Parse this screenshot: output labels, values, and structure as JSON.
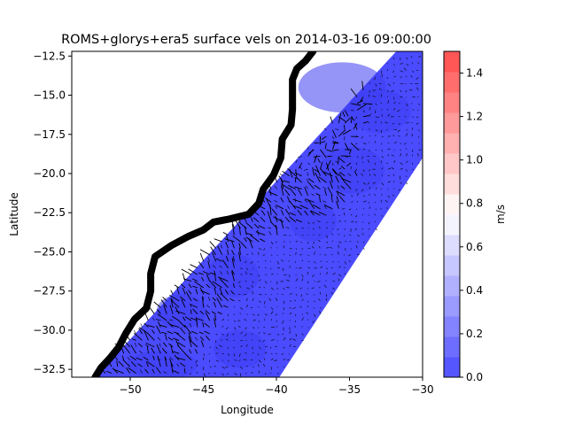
{
  "chart_data": {
    "type": "heatmap",
    "title": "ROMS+glorys+era5 surface vels on 2014-03-16 09:00:00",
    "xlabel": "Longitude",
    "ylabel": "Latitude",
    "xlim": [
      -54,
      -30
    ],
    "ylim": [
      -33,
      -12.2
    ],
    "xticks": [
      -50,
      -45,
      -40,
      -35,
      -30
    ],
    "yticks": [
      -32.5,
      -30.0,
      -27.5,
      -25.0,
      -22.5,
      -20.0,
      -17.5,
      -15.0,
      -12.5
    ],
    "xtick_labels": [
      "−50",
      "−45",
      "−40",
      "−35",
      "−30"
    ],
    "ytick_labels": [
      "−32.5",
      "−30.0",
      "−27.5",
      "−25.0",
      "−22.5",
      "−20.0",
      "−17.5",
      "−15.0",
      "−12.5"
    ],
    "colorbar": {
      "label": "m/s",
      "range": [
        0.0,
        1.5
      ],
      "ticks": [
        0.0,
        0.2,
        0.4,
        0.6,
        0.8,
        1.0,
        1.2,
        1.4
      ],
      "tick_labels": [
        "0.0",
        "0.2",
        "0.4",
        "0.6",
        "0.8",
        "1.0",
        "1.2",
        "1.4"
      ],
      "levels": 16,
      "colormap": "bwr",
      "low_color": "#4b4bff",
      "mid_color": "#ffffff",
      "high_color": "#ff4b4b"
    },
    "grid": false,
    "domain_fill_color": "#4b4bff",
    "coast_color": "#000000",
    "domain_outline": [
      [
        -31.8,
        -12.2
      ],
      [
        -30,
        -12.2
      ],
      [
        -30,
        -19.0
      ],
      [
        -39.8,
        -33.0
      ],
      [
        -52.4,
        -33.0
      ]
    ],
    "coastline": [
      [
        -52.4,
        -33.0
      ],
      [
        -52.0,
        -32.4
      ],
      [
        -51.4,
        -31.8
      ],
      [
        -50.8,
        -31.1
      ],
      [
        -50.3,
        -30.2
      ],
      [
        -49.7,
        -29.3
      ],
      [
        -48.9,
        -28.6
      ],
      [
        -48.6,
        -27.5
      ],
      [
        -48.6,
        -26.4
      ],
      [
        -48.3,
        -25.3
      ],
      [
        -47.2,
        -24.6
      ],
      [
        -46.0,
        -24.0
      ],
      [
        -45.0,
        -23.6
      ],
      [
        -44.3,
        -23.1
      ],
      [
        -43.2,
        -22.9
      ],
      [
        -41.9,
        -22.6
      ],
      [
        -41.2,
        -21.9
      ],
      [
        -40.9,
        -21.0
      ],
      [
        -40.2,
        -20.1
      ],
      [
        -39.7,
        -19.0
      ],
      [
        -39.6,
        -17.8
      ],
      [
        -39.0,
        -16.9
      ],
      [
        -38.9,
        -15.9
      ],
      [
        -38.9,
        -14.8
      ],
      [
        -38.9,
        -14.0
      ],
      [
        -38.6,
        -13.3
      ],
      [
        -38.0,
        -12.8
      ],
      [
        -37.5,
        -12.2
      ]
    ]
  }
}
